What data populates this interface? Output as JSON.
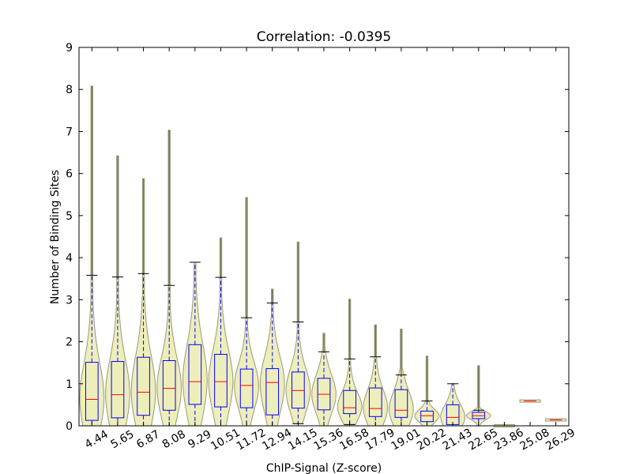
{
  "chart_data": {
    "type": "violin",
    "title": "Correlation: -0.0395",
    "xlabel": "ChIP-Signal (Z-score)",
    "ylabel": "Number of Binding Sites",
    "ylim": [
      0,
      9
    ],
    "y_ticks": [
      "0",
      "1",
      "2",
      "3",
      "4",
      "5",
      "6",
      "7",
      "8",
      "9"
    ],
    "categories": [
      "4.44",
      "5.65",
      "6.87",
      "8.08",
      "9.29",
      "10.51",
      "11.72",
      "12.94",
      "14.15",
      "15.36",
      "16.58",
      "17.79",
      "19.01",
      "20.22",
      "21.43",
      "22.65",
      "23.86",
      "25.08",
      "26.29"
    ],
    "colors": {
      "violin_fill": "#eeeebb",
      "violin_edge": "#999977",
      "box": "#0000ff",
      "median": "#ff0000",
      "whisker": "#0000ff",
      "cap": "#000000",
      "extreme": "#777755"
    },
    "boxes": [
      {
        "category": "4.44",
        "q1": 0.13,
        "median": 0.63,
        "q3": 1.51,
        "whislo": 0.0,
        "whishi": 3.58,
        "max": 8.08
      },
      {
        "category": "5.65",
        "q1": 0.19,
        "median": 0.74,
        "q3": 1.53,
        "whislo": 0.0,
        "whishi": 3.54,
        "max": 6.42
      },
      {
        "category": "6.87",
        "q1": 0.25,
        "median": 0.8,
        "q3": 1.63,
        "whislo": 0.0,
        "whishi": 3.62,
        "max": 5.88
      },
      {
        "category": "8.08",
        "q1": 0.37,
        "median": 0.89,
        "q3": 1.55,
        "whislo": 0.0,
        "whishi": 3.34,
        "max": 7.03
      },
      {
        "category": "9.29",
        "q1": 0.51,
        "median": 1.05,
        "q3": 1.93,
        "whislo": 0.0,
        "whishi": 3.89,
        "max": 3.89
      },
      {
        "category": "10.51",
        "q1": 0.45,
        "median": 1.05,
        "q3": 1.7,
        "whislo": 0.0,
        "whishi": 3.53,
        "max": 4.47
      },
      {
        "category": "11.72",
        "q1": 0.43,
        "median": 0.96,
        "q3": 1.35,
        "whislo": 0.0,
        "whishi": 2.57,
        "max": 5.43
      },
      {
        "category": "12.94",
        "q1": 0.26,
        "median": 1.03,
        "q3": 1.36,
        "whislo": 0.0,
        "whishi": 2.92,
        "max": 3.25
      },
      {
        "category": "14.15",
        "q1": 0.42,
        "median": 0.84,
        "q3": 1.28,
        "whislo": 0.05,
        "whishi": 2.47,
        "max": 4.37
      },
      {
        "category": "15.36",
        "q1": 0.38,
        "median": 0.75,
        "q3": 1.13,
        "whislo": 0.0,
        "whishi": 1.76,
        "max": 2.2
      },
      {
        "category": "16.58",
        "q1": 0.29,
        "median": 0.43,
        "q3": 0.84,
        "whislo": 0.03,
        "whishi": 1.59,
        "max": 3.01
      },
      {
        "category": "17.79",
        "q1": 0.22,
        "median": 0.41,
        "q3": 0.9,
        "whislo": 0.0,
        "whishi": 1.64,
        "max": 2.4
      },
      {
        "category": "19.01",
        "q1": 0.2,
        "median": 0.37,
        "q3": 0.86,
        "whislo": 0.0,
        "whishi": 1.21,
        "max": 2.3
      },
      {
        "category": "20.22",
        "q1": 0.1,
        "median": 0.24,
        "q3": 0.35,
        "whislo": 0.0,
        "whishi": 0.59,
        "max": 1.66
      },
      {
        "category": "21.43",
        "q1": 0.03,
        "median": 0.2,
        "q3": 0.5,
        "whislo": 0.0,
        "whishi": 1.0,
        "max": 1.0
      },
      {
        "category": "22.65",
        "q1": 0.17,
        "median": 0.24,
        "q3": 0.32,
        "whislo": 0.0,
        "whishi": 0.37,
        "max": 1.43
      },
      {
        "category": "23.86",
        "q1": 0.0,
        "median": 0.0,
        "q3": 0.0,
        "whislo": 0.0,
        "whishi": 0.0,
        "max": 0.02
      },
      {
        "category": "25.08",
        "q1": 0.59,
        "median": 0.59,
        "q3": 0.59,
        "whislo": 0.59,
        "whishi": 0.59,
        "max": 0.59
      },
      {
        "category": "26.29",
        "q1": 0.14,
        "median": 0.14,
        "q3": 0.14,
        "whislo": 0.14,
        "whishi": 0.14,
        "max": 0.14
      }
    ]
  }
}
